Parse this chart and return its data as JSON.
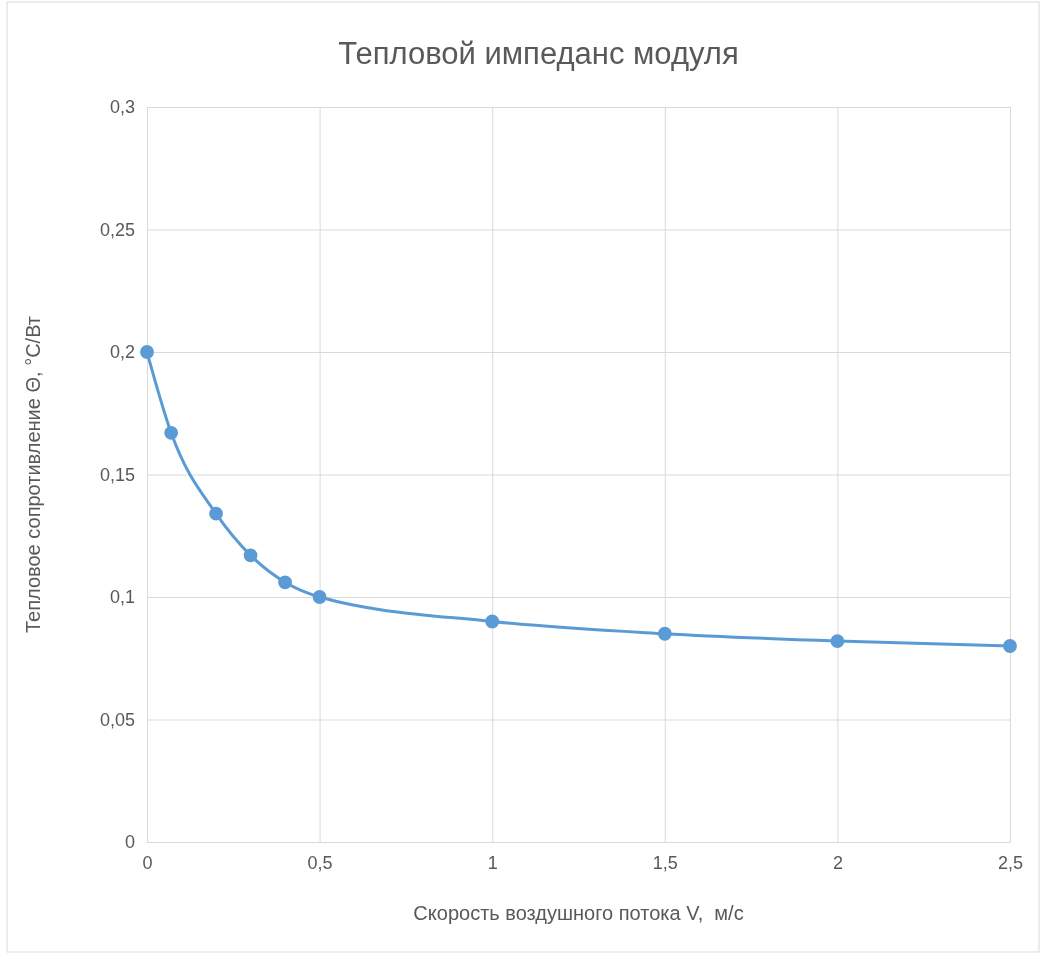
{
  "chart_data": {
    "type": "line",
    "title": "Тепловой импеданс модуля",
    "xlabel": "Скорость воздушного потока V,  м/с",
    "ylabel": "Тепловое сопротивление Θ, °С/Вт",
    "series": [
      {
        "color": "#5b9bd5",
        "x": [
          0,
          0.07,
          0.2,
          0.3,
          0.4,
          0.5,
          1,
          1.5,
          2,
          2.5
        ],
        "values": [
          0.2,
          0.167,
          0.134,
          0.117,
          0.106,
          0.1,
          0.09,
          0.085,
          0.082,
          0.08
        ]
      }
    ],
    "xlim": [
      0,
      2.5
    ],
    "xticks": [
      0,
      {
        "value": 0.5,
        "label": "0,5"
      },
      1,
      {
        "value": 1.5,
        "label": "1,5"
      },
      2,
      {
        "value": 2.5,
        "label": "2,5"
      }
    ],
    "ylim": [
      0,
      0.3
    ],
    "yticks": [
      0,
      {
        "value": 0.05,
        "label": "0,05"
      },
      {
        "value": 0.1,
        "label": "0,1"
      },
      {
        "value": 0.15,
        "label": "0,15"
      },
      {
        "value": 0.2,
        "label": "0,2"
      },
      {
        "value": 0.25,
        "label": "0,25"
      },
      {
        "value": 0.3,
        "label": "0,3"
      }
    ],
    "grid": true,
    "marker": "circle",
    "line_style": "solid"
  }
}
